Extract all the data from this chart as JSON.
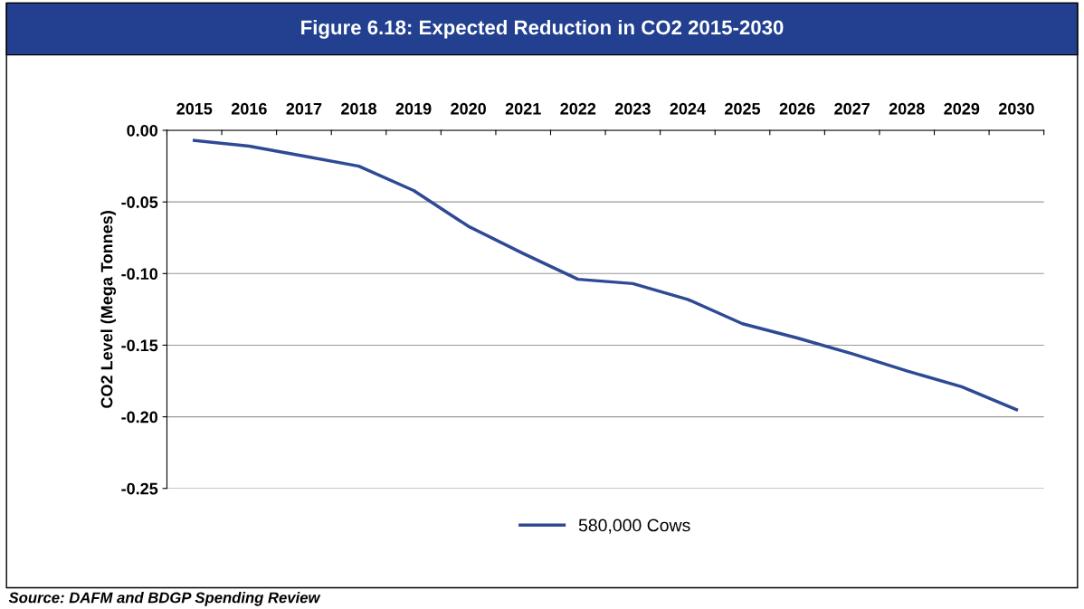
{
  "chart_data": {
    "type": "line",
    "title": "Figure 6.18: Expected Reduction in CO2 2015-2030",
    "ylabel": "CO2 Level (Mega Tonnes)",
    "categories": [
      "2015",
      "2016",
      "2017",
      "2018",
      "2019",
      "2020",
      "2021",
      "2022",
      "2023",
      "2024",
      "2025",
      "2026",
      "2027",
      "2028",
      "2029",
      "2030"
    ],
    "series": [
      {
        "name": "580,000 Cows",
        "color": "#2e4a94",
        "values": [
          -0.007,
          -0.011,
          -0.018,
          -0.025,
          -0.042,
          -0.067,
          -0.086,
          -0.104,
          -0.107,
          -0.118,
          -0.135,
          -0.145,
          -0.156,
          -0.168,
          -0.179,
          -0.195
        ]
      }
    ],
    "ylim": [
      -0.25,
      0
    ],
    "yticks": [
      {
        "value": 0,
        "label": "0.00"
      },
      {
        "value": -0.05,
        "label": "-0.05"
      },
      {
        "value": -0.1,
        "label": "-0.10"
      },
      {
        "value": -0.15,
        "label": "-0.15"
      },
      {
        "value": -0.2,
        "label": "-0.20"
      },
      {
        "value": -0.25,
        "label": "-0.25"
      }
    ],
    "grid": "y",
    "legend": "bottom",
    "marker": "none",
    "line_style": "solid",
    "annotations": [
      "Source: DAFM and BDGP Spending Review"
    ]
  }
}
